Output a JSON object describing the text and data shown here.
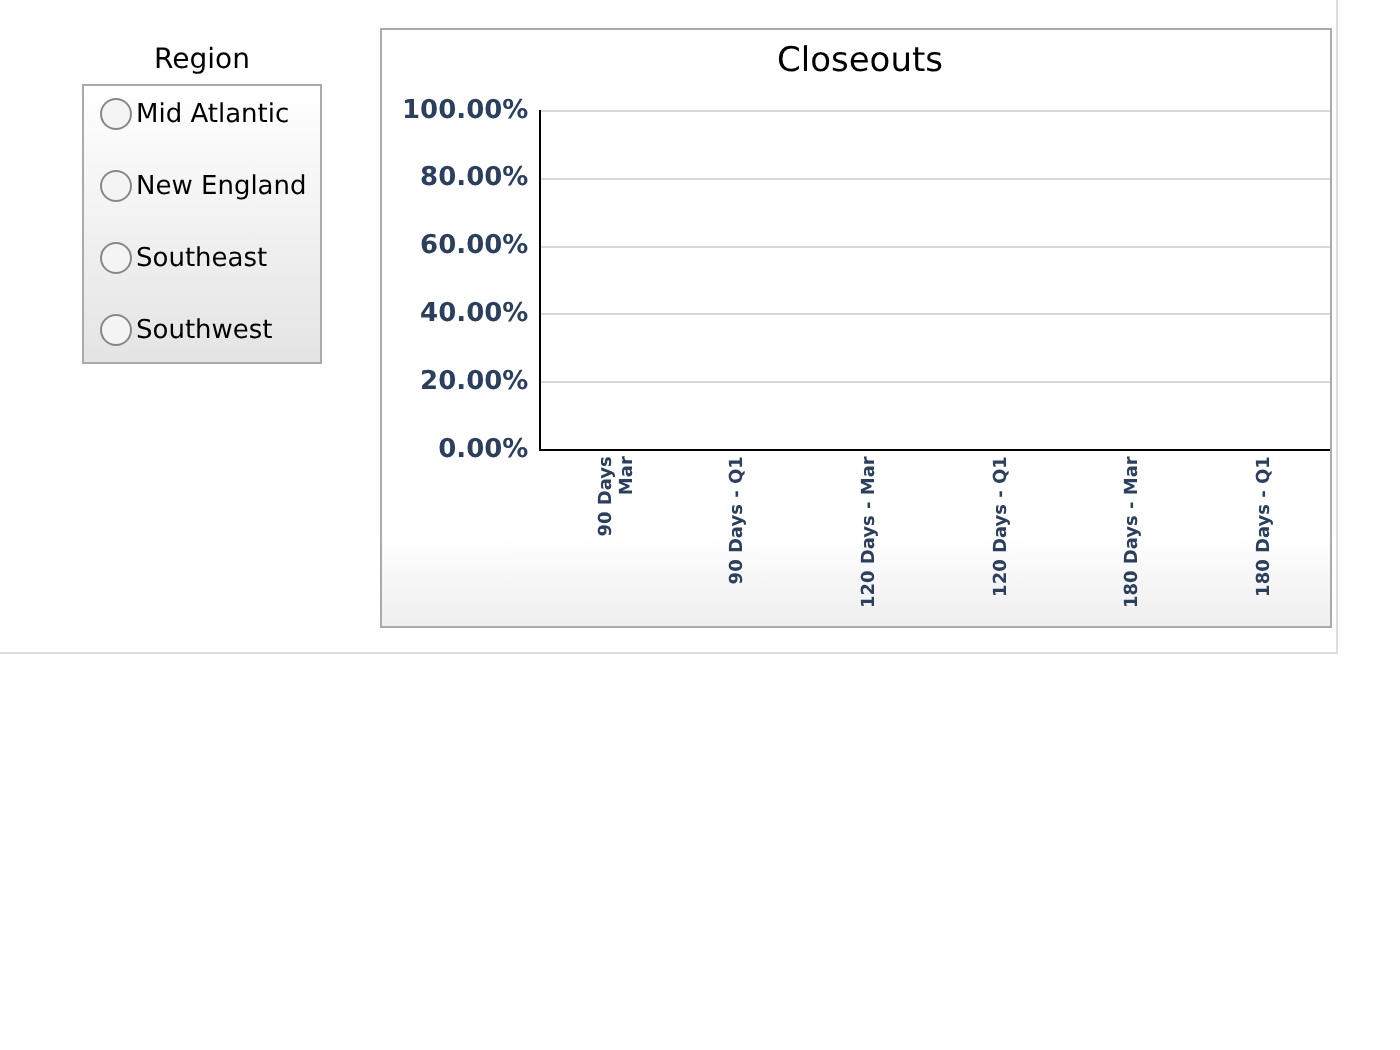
{
  "chart_data": {
    "type": "bar",
    "title": "Closeouts",
    "categories": [
      "90 Days\nMar",
      "90 Days - Q1",
      "120 Days - Mar",
      "120 Days - Q1",
      "180 Days - Mar",
      "180 Days - Q1"
    ],
    "values": [
      0,
      0,
      0,
      0,
      0,
      0
    ],
    "ylim": [
      0,
      100
    ],
    "yticks": [
      {
        "value": 0,
        "label": "0.00%"
      },
      {
        "value": 20,
        "label": "20.00%"
      },
      {
        "value": 40,
        "label": "40.00%"
      },
      {
        "value": 60,
        "label": "60.00%"
      },
      {
        "value": 80,
        "label": "80.00%"
      },
      {
        "value": 100,
        "label": "100.00%"
      }
    ],
    "grid": "y",
    "legend": false,
    "annotations": [
      "Region",
      "Mid Atlantic",
      "New England",
      "Southeast",
      "Southwest"
    ]
  }
}
